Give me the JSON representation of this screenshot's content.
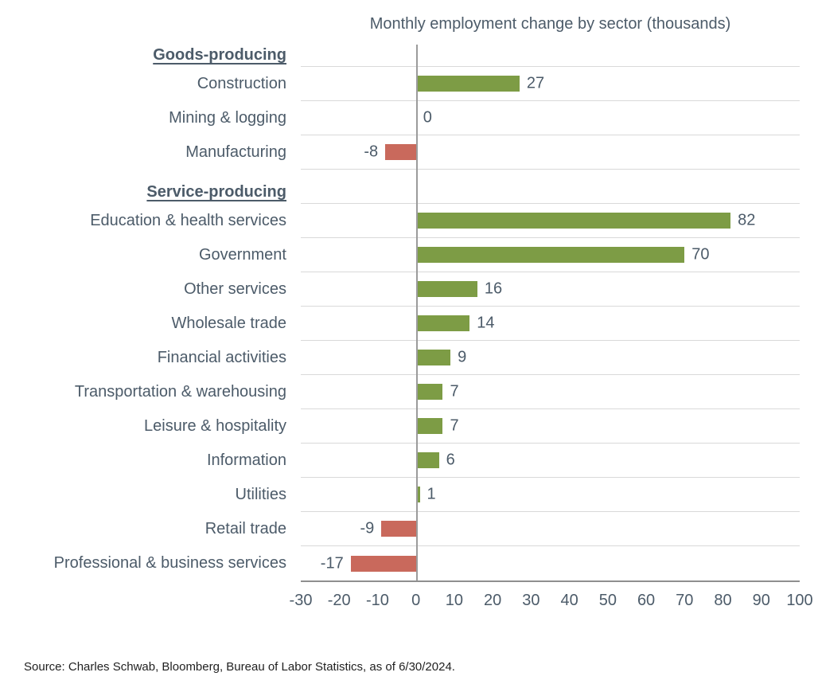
{
  "title": "Monthly employment change by sector (thousands)",
  "source": "Source: Charles Schwab, Bloomberg, Bureau of Labor Statistics, as of 6/30/2024.",
  "colors": {
    "positive": "#7d9c45",
    "negative": "#c9695c",
    "text": "#4c5b69",
    "gridline": "#d9d9d9",
    "zero_line": "#9b9b9b",
    "axis_line": "#8f8f8f",
    "source_text": "#1f1f1f"
  },
  "chart_data": {
    "type": "bar",
    "orientation": "horizontal",
    "title": "Monthly employment change by sector (thousands)",
    "xlim": [
      -30,
      100
    ],
    "x_ticks": [
      -30,
      -20,
      -10,
      0,
      10,
      20,
      30,
      40,
      50,
      60,
      70,
      80,
      90,
      100
    ],
    "grid": "row-separators",
    "legend": "none",
    "groups": [
      {
        "label": "Goods-producing",
        "items": [
          {
            "label": "Construction",
            "value": 27
          },
          {
            "label": "Mining & logging",
            "value": 0
          },
          {
            "label": "Manufacturing",
            "value": -8
          }
        ]
      },
      {
        "label": "Service-producing",
        "items": [
          {
            "label": "Education & health services",
            "value": 82
          },
          {
            "label": "Government",
            "value": 70
          },
          {
            "label": "Other services",
            "value": 16
          },
          {
            "label": "Wholesale trade",
            "value": 14
          },
          {
            "label": "Financial activities",
            "value": 9
          },
          {
            "label": "Transportation & warehousing",
            "value": 7
          },
          {
            "label": "Leisure & hospitality",
            "value": 7
          },
          {
            "label": "Information",
            "value": 6
          },
          {
            "label": "Utilities",
            "value": 1
          },
          {
            "label": "Retail trade",
            "value": -9
          },
          {
            "label": "Professional & business services",
            "value": -17
          }
        ]
      }
    ]
  }
}
